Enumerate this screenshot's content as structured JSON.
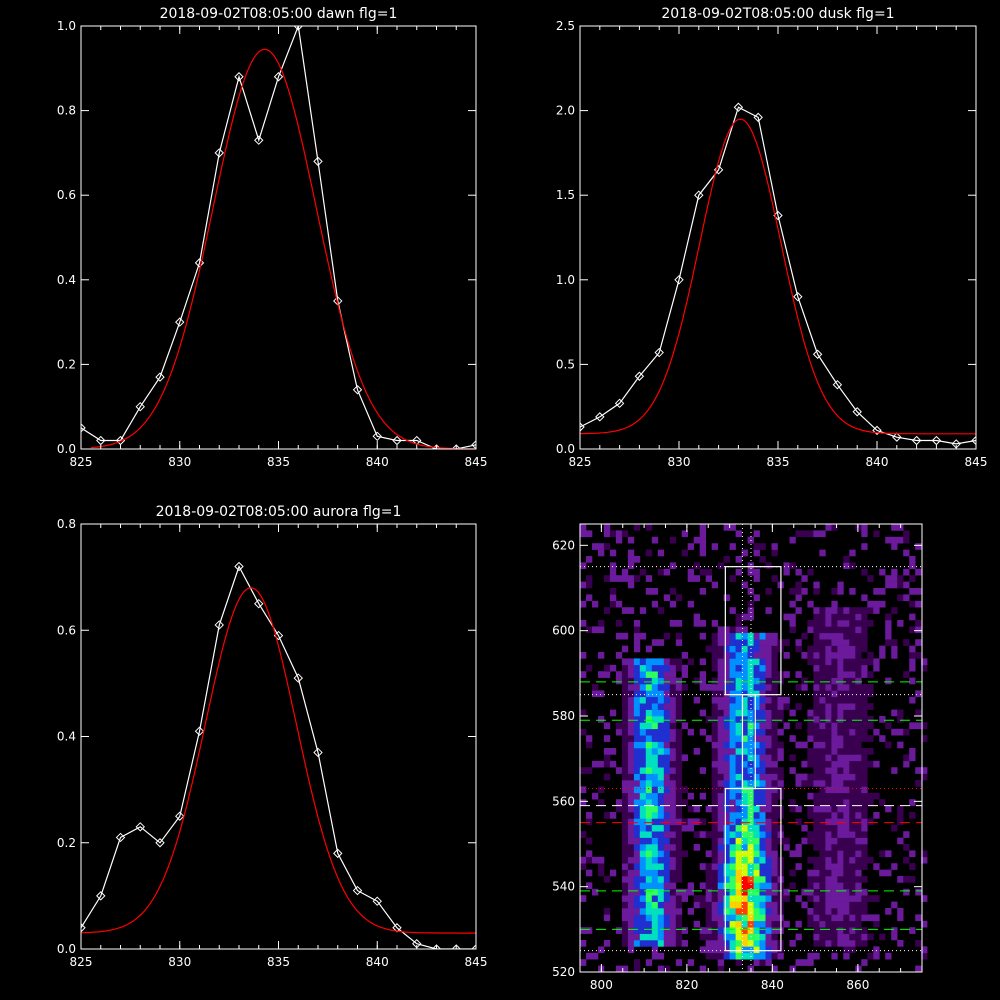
{
  "chart_data": [
    {
      "type": "line",
      "title": "2018-09-02T08:05:00 dawn flg=1",
      "xlim": [
        825,
        845
      ],
      "ylim": [
        0,
        1.0
      ],
      "xticks": [
        "825",
        "830",
        "835",
        "840",
        "845"
      ],
      "yticks": [
        "0.0",
        "0.2",
        "0.4",
        "0.6",
        "0.8",
        "1.0"
      ],
      "series": [
        {
          "color": "#ffffff",
          "markers": "diamond",
          "x": [
            825,
            826,
            827,
            828,
            829,
            830,
            831,
            832,
            833,
            834,
            835,
            836,
            837,
            838,
            839,
            840,
            841,
            842,
            843,
            844,
            845
          ],
          "y": [
            0.05,
            0.02,
            0.02,
            0.1,
            0.17,
            0.3,
            0.44,
            0.7,
            0.88,
            0.73,
            0.88,
            1.0,
            0.68,
            0.35,
            0.14,
            0.03,
            0.02,
            0.02,
            0.0,
            0.0,
            0.01
          ]
        },
        {
          "color": "#ff0000",
          "markers": "none",
          "gauss": {
            "amp": 0.945,
            "center": 834.3,
            "sigma": 2.6,
            "offset": 0.0,
            "from": 825.5,
            "to": 845
          }
        }
      ]
    },
    {
      "type": "line",
      "title": "2018-09-02T08:05:00 dusk flg=1",
      "xlim": [
        825,
        845
      ],
      "ylim": [
        0,
        2.5
      ],
      "xticks": [
        "825",
        "830",
        "835",
        "840",
        "845"
      ],
      "yticks": [
        "0.0",
        "0.5",
        "1.0",
        "1.5",
        "2.0",
        "2.5"
      ],
      "series": [
        {
          "color": "#ffffff",
          "markers": "diamond",
          "x": [
            825,
            826,
            827,
            828,
            829,
            830,
            831,
            832,
            833,
            834,
            835,
            836,
            837,
            838,
            839,
            840,
            841,
            842,
            843,
            844,
            845
          ],
          "y": [
            0.13,
            0.19,
            0.27,
            0.43,
            0.57,
            1.0,
            1.5,
            1.65,
            2.02,
            1.96,
            1.38,
            0.9,
            0.56,
            0.38,
            0.22,
            0.11,
            0.07,
            0.05,
            0.05,
            0.03,
            0.05
          ]
        },
        {
          "color": "#ff0000",
          "markers": "none",
          "gauss": {
            "amp": 1.86,
            "center": 833.1,
            "sigma": 2.05,
            "offset": 0.09,
            "from": 825,
            "to": 845
          }
        }
      ]
    },
    {
      "type": "line",
      "title": "2018-09-02T08:05:00 aurora flg=1",
      "xlim": [
        825,
        845
      ],
      "ylim": [
        0,
        0.8
      ],
      "xticks": [
        "825",
        "830",
        "835",
        "840",
        "845"
      ],
      "yticks": [
        "0.0",
        "0.2",
        "0.4",
        "0.6",
        "0.8"
      ],
      "series": [
        {
          "color": "#ffffff",
          "markers": "diamond",
          "x": [
            825,
            826,
            827,
            828,
            829,
            830,
            831,
            832,
            833,
            834,
            835,
            836,
            837,
            838,
            839,
            840,
            841,
            842,
            843,
            844,
            845
          ],
          "y": [
            0.04,
            0.1,
            0.21,
            0.23,
            0.2,
            0.25,
            0.41,
            0.61,
            0.72,
            0.65,
            0.59,
            0.51,
            0.37,
            0.18,
            0.11,
            0.09,
            0.04,
            0.01,
            0.0,
            0.0,
            0.0
          ]
        },
        {
          "color": "#ff0000",
          "markers": "none",
          "gauss": {
            "amp": 0.65,
            "center": 833.6,
            "sigma": 2.3,
            "offset": 0.03,
            "from": 825,
            "to": 845
          }
        }
      ]
    },
    {
      "type": "heatmap",
      "title": "",
      "xlim": [
        795,
        875
      ],
      "ylim": [
        520,
        625
      ],
      "xticks": [
        800,
        820,
        840,
        860
      ],
      "yticks": [
        520,
        540,
        560,
        580,
        600,
        620
      ],
      "bands": [
        {
          "center": 811,
          "width": 3.5,
          "y_from": 525,
          "y_to": 592,
          "peak": 0.55
        },
        {
          "center": 833,
          "width": 4.0,
          "y_from": 523,
          "y_to": 598,
          "peak": 0.95
        },
        {
          "center": 855,
          "width": 5.0,
          "y_from": 525,
          "y_to": 605,
          "peak": 0.18
        }
      ],
      "boxes": [
        {
          "x": [
            829,
            842
          ],
          "y": [
            585,
            615
          ],
          "color": "#ffffff"
        },
        {
          "x": [
            829,
            842
          ],
          "y": [
            525,
            563
          ],
          "color": "#ffffff"
        },
        {
          "x": [
            833,
            836
          ],
          "y": [
            563,
            585
          ],
          "color": "#ffffff"
        }
      ],
      "hlines": [
        {
          "y": 615,
          "style": "dotted",
          "color": "#ffffff"
        },
        {
          "y": 588,
          "style": "dashed",
          "color": "#00ff00"
        },
        {
          "y": 585,
          "style": "dotted",
          "color": "#ffffff"
        },
        {
          "y": 579,
          "style": "dashed",
          "color": "#00ff00"
        },
        {
          "y": 563,
          "style": "dotted",
          "color": "#ff0000"
        },
        {
          "y": 559,
          "style": "dashed",
          "color": "#ffffff"
        },
        {
          "y": 555,
          "style": "dashed",
          "color": "#ff0000"
        },
        {
          "y": 539,
          "style": "dashed",
          "color": "#00ff00"
        },
        {
          "y": 530,
          "style": "dashed",
          "color": "#00ff00"
        },
        {
          "y": 525,
          "style": "dotted",
          "color": "#ffffff"
        }
      ],
      "vlines": [
        {
          "x": 833,
          "style": "dotted",
          "color": "#ffffff"
        },
        {
          "x": 835,
          "style": "dotted",
          "color": "#ffffff"
        }
      ],
      "colormap": [
        "#000000",
        "#3a0050",
        "#6a1a9a",
        "#2030d0",
        "#0090ff",
        "#00e0c0",
        "#30ff60",
        "#d0ff00",
        "#ffd000",
        "#ff4000",
        "#ff0000"
      ]
    }
  ]
}
